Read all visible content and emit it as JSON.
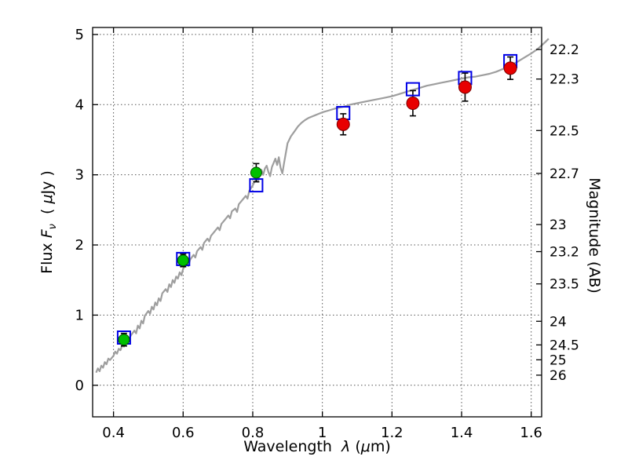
{
  "figure": {
    "background": "#ffffff"
  },
  "chart_data": {
    "type": "scatter",
    "title": "",
    "xlabel": {
      "word": "Wavelength",
      "symbol": "λ",
      "open": "(",
      "mu": "μ",
      "close": "m)"
    },
    "ylabel_left": {
      "word": "Flux",
      "symbol": "F",
      "sub": "ν",
      "open": "( ",
      "mu": "μ",
      "close": "Jy )"
    },
    "ylabel_right": {
      "text": "Magnitude (AB)"
    },
    "xlim": [
      0.34,
      1.63
    ],
    "ylim": [
      -0.45,
      5.1
    ],
    "grid": {
      "show": true,
      "style": "dotted",
      "color": "#555555"
    },
    "x_ticks": [
      {
        "value": 0.4,
        "label": "0.4"
      },
      {
        "value": 0.6,
        "label": "0.6"
      },
      {
        "value": 0.8,
        "label": "0.8"
      },
      {
        "value": 1.0,
        "label": "1"
      },
      {
        "value": 1.2,
        "label": "1.2"
      },
      {
        "value": 1.4,
        "label": "1.4"
      },
      {
        "value": 1.6,
        "label": "1.6"
      }
    ],
    "y_ticks_left": [
      {
        "value": 0,
        "label": "0"
      },
      {
        "value": 1,
        "label": "1"
      },
      {
        "value": 2,
        "label": "2"
      },
      {
        "value": 3,
        "label": "3"
      },
      {
        "value": 4,
        "label": "4"
      },
      {
        "value": 5,
        "label": "5"
      }
    ],
    "y_ticks_right": [
      {
        "flux": 4.786,
        "label": "22.2"
      },
      {
        "flux": 4.365,
        "label": "22.3"
      },
      {
        "flux": 3.631,
        "label": "22.5"
      },
      {
        "flux": 3.02,
        "label": "22.7"
      },
      {
        "flux": 2.291,
        "label": "23"
      },
      {
        "flux": 1.905,
        "label": "23.2"
      },
      {
        "flux": 1.445,
        "label": "23.5"
      },
      {
        "flux": 0.912,
        "label": "24"
      },
      {
        "flux": 0.575,
        "label": "24.5"
      },
      {
        "flux": 0.363,
        "label": "25"
      },
      {
        "flux": 0.144,
        "label": "26"
      }
    ],
    "series": [
      {
        "name": "model-spectrum",
        "type": "line",
        "color": "#9e9e9e",
        "width": 2.2,
        "points": [
          [
            0.35,
            0.18
          ],
          [
            0.355,
            0.24
          ],
          [
            0.36,
            0.2
          ],
          [
            0.365,
            0.28
          ],
          [
            0.37,
            0.25
          ],
          [
            0.375,
            0.33
          ],
          [
            0.38,
            0.3
          ],
          [
            0.385,
            0.38
          ],
          [
            0.39,
            0.36
          ],
          [
            0.4,
            0.42
          ],
          [
            0.405,
            0.48
          ],
          [
            0.41,
            0.45
          ],
          [
            0.415,
            0.52
          ],
          [
            0.42,
            0.5
          ],
          [
            0.425,
            0.57
          ],
          [
            0.43,
            0.55
          ],
          [
            0.435,
            0.62
          ],
          [
            0.44,
            0.6
          ],
          [
            0.445,
            0.67
          ],
          [
            0.45,
            0.71
          ],
          [
            0.46,
            0.78
          ],
          [
            0.465,
            0.74
          ],
          [
            0.47,
            0.85
          ],
          [
            0.475,
            0.81
          ],
          [
            0.48,
            0.92
          ],
          [
            0.485,
            0.88
          ],
          [
            0.49,
            0.99
          ],
          [
            0.5,
            1.06
          ],
          [
            0.505,
            1.02
          ],
          [
            0.51,
            1.12
          ],
          [
            0.515,
            1.08
          ],
          [
            0.52,
            1.18
          ],
          [
            0.525,
            1.14
          ],
          [
            0.53,
            1.24
          ],
          [
            0.535,
            1.2
          ],
          [
            0.54,
            1.31
          ],
          [
            0.55,
            1.37
          ],
          [
            0.555,
            1.33
          ],
          [
            0.56,
            1.44
          ],
          [
            0.565,
            1.4
          ],
          [
            0.57,
            1.5
          ],
          [
            0.575,
            1.46
          ],
          [
            0.58,
            1.55
          ],
          [
            0.585,
            1.52
          ],
          [
            0.59,
            1.61
          ],
          [
            0.595,
            1.57
          ],
          [
            0.6,
            1.66
          ],
          [
            0.61,
            1.74
          ],
          [
            0.615,
            1.7
          ],
          [
            0.62,
            1.79
          ],
          [
            0.63,
            1.86
          ],
          [
            0.635,
            1.82
          ],
          [
            0.64,
            1.91
          ],
          [
            0.65,
            1.97
          ],
          [
            0.655,
            1.93
          ],
          [
            0.66,
            2.03
          ],
          [
            0.67,
            2.09
          ],
          [
            0.675,
            2.05
          ],
          [
            0.68,
            2.13
          ],
          [
            0.69,
            2.19
          ],
          [
            0.7,
            2.25
          ],
          [
            0.705,
            2.21
          ],
          [
            0.71,
            2.3
          ],
          [
            0.72,
            2.36
          ],
          [
            0.73,
            2.42
          ],
          [
            0.735,
            2.38
          ],
          [
            0.74,
            2.48
          ],
          [
            0.75,
            2.52
          ],
          [
            0.755,
            2.47
          ],
          [
            0.76,
            2.58
          ],
          [
            0.77,
            2.64
          ],
          [
            0.78,
            2.7
          ],
          [
            0.785,
            2.66
          ],
          [
            0.79,
            2.77
          ],
          [
            0.8,
            2.85
          ],
          [
            0.81,
            2.95
          ],
          [
            0.815,
            2.9
          ],
          [
            0.82,
            3.01
          ],
          [
            0.825,
            3.07
          ],
          [
            0.83,
            3.0
          ],
          [
            0.835,
            3.09
          ],
          [
            0.84,
            3.13
          ],
          [
            0.845,
            3.04
          ],
          [
            0.85,
            2.98
          ],
          [
            0.855,
            3.11
          ],
          [
            0.86,
            3.17
          ],
          [
            0.865,
            3.23
          ],
          [
            0.87,
            3.14
          ],
          [
            0.875,
            3.25
          ],
          [
            0.88,
            3.1
          ],
          [
            0.885,
            3.02
          ],
          [
            0.89,
            3.17
          ],
          [
            0.895,
            3.31
          ],
          [
            0.9,
            3.45
          ],
          [
            0.91,
            3.55
          ],
          [
            0.92,
            3.62
          ],
          [
            0.93,
            3.69
          ],
          [
            0.94,
            3.74
          ],
          [
            0.95,
            3.78
          ],
          [
            0.96,
            3.81
          ],
          [
            0.97,
            3.83
          ],
          [
            0.98,
            3.85
          ],
          [
            0.99,
            3.87
          ],
          [
            1.0,
            3.89
          ],
          [
            1.02,
            3.92
          ],
          [
            1.04,
            3.95
          ],
          [
            1.06,
            3.97
          ],
          [
            1.08,
            4.0
          ],
          [
            1.1,
            4.02
          ],
          [
            1.12,
            4.04
          ],
          [
            1.14,
            4.06
          ],
          [
            1.16,
            4.08
          ],
          [
            1.18,
            4.1
          ],
          [
            1.2,
            4.12
          ],
          [
            1.22,
            4.15
          ],
          [
            1.24,
            4.18
          ],
          [
            1.26,
            4.21
          ],
          [
            1.28,
            4.24
          ],
          [
            1.3,
            4.27
          ],
          [
            1.32,
            4.29
          ],
          [
            1.34,
            4.31
          ],
          [
            1.36,
            4.33
          ],
          [
            1.38,
            4.35
          ],
          [
            1.4,
            4.37
          ],
          [
            1.42,
            4.39
          ],
          [
            1.44,
            4.4
          ],
          [
            1.46,
            4.42
          ],
          [
            1.48,
            4.44
          ],
          [
            1.5,
            4.47
          ],
          [
            1.52,
            4.51
          ],
          [
            1.54,
            4.56
          ],
          [
            1.56,
            4.61
          ],
          [
            1.58,
            4.67
          ],
          [
            1.6,
            4.73
          ],
          [
            1.62,
            4.8
          ],
          [
            1.64,
            4.89
          ],
          [
            1.65,
            4.94
          ]
        ]
      },
      {
        "name": "model-photometry-squares",
        "type": "open-square",
        "color": "#0000e6",
        "size": 16,
        "points": [
          [
            0.43,
            0.68
          ],
          [
            0.6,
            1.8
          ],
          [
            0.81,
            2.85
          ],
          [
            1.06,
            3.88
          ],
          [
            1.26,
            4.22
          ],
          [
            1.41,
            4.38
          ],
          [
            1.54,
            4.62
          ]
        ]
      },
      {
        "name": "observed-points-green",
        "type": "circle",
        "color": "#00c000",
        "edge": "#004d00",
        "size": 7,
        "points": [
          {
            "x": 0.43,
            "y": 0.65,
            "yerr": 0.09
          },
          {
            "x": 0.6,
            "y": 1.78,
            "yerr": 0.09
          },
          {
            "x": 0.81,
            "y": 3.03,
            "yerr": 0.13
          }
        ]
      },
      {
        "name": "observed-points-red",
        "type": "circle",
        "color": "#e80000",
        "edge": "#7a0000",
        "size": 8,
        "points": [
          {
            "x": 1.06,
            "y": 3.72,
            "yerr": 0.15
          },
          {
            "x": 1.26,
            "y": 4.02,
            "yerr": 0.18
          },
          {
            "x": 1.41,
            "y": 4.25,
            "yerr": 0.2
          },
          {
            "x": 1.54,
            "y": 4.52,
            "yerr": 0.16
          }
        ]
      }
    ]
  }
}
